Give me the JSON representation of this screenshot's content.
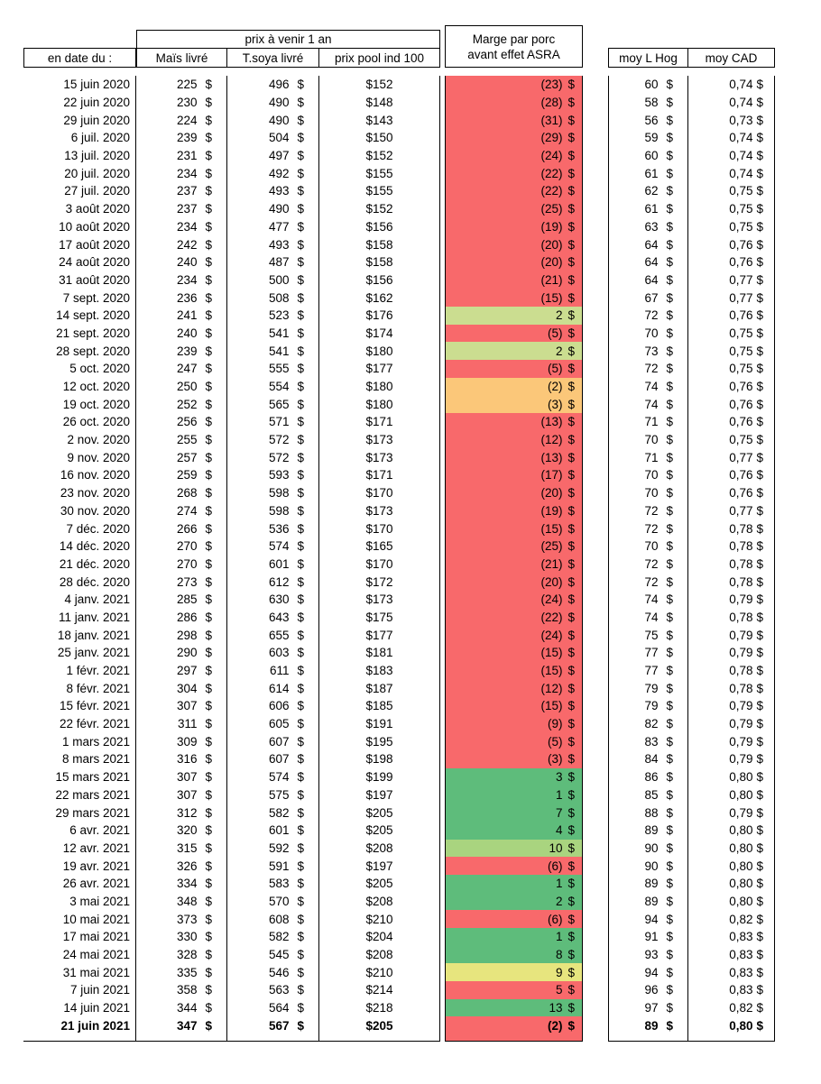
{
  "currency": "$",
  "header": {
    "date_col": "en date du :",
    "group": "prix à venir 1 an",
    "mais": "Maïs livré",
    "soya": "T.soya livré",
    "pool": "prix pool ind 100",
    "marge_line1": "Marge par porc",
    "marge_line2": "avant effet ASRA",
    "hog": "moy L Hog",
    "cad": "moy CAD"
  },
  "colors": {
    "red": "#F8696B",
    "orange": "#FBC779",
    "yellow": "#E7E57E",
    "light_green": "#CBDD90",
    "mid_green": "#A9D47F",
    "green": "#5EBC7B"
  },
  "rows": [
    {
      "date": "15 juin 2020",
      "mais": "225",
      "soya": "496",
      "pool": "$152",
      "marge": "(23)",
      "color": "red",
      "hog": "60",
      "cad": "0,74",
      "bold": false
    },
    {
      "date": "22 juin 2020",
      "mais": "230",
      "soya": "490",
      "pool": "$148",
      "marge": "(28)",
      "color": "red",
      "hog": "58",
      "cad": "0,74",
      "bold": false
    },
    {
      "date": "29 juin 2020",
      "mais": "224",
      "soya": "490",
      "pool": "$143",
      "marge": "(31)",
      "color": "red",
      "hog": "56",
      "cad": "0,73",
      "bold": false
    },
    {
      "date": "6 juil. 2020",
      "mais": "239",
      "soya": "504",
      "pool": "$150",
      "marge": "(29)",
      "color": "red",
      "hog": "59",
      "cad": "0,74",
      "bold": false
    },
    {
      "date": "13 juil. 2020",
      "mais": "231",
      "soya": "497",
      "pool": "$152",
      "marge": "(24)",
      "color": "red",
      "hog": "60",
      "cad": "0,74",
      "bold": false
    },
    {
      "date": "20 juil. 2020",
      "mais": "234",
      "soya": "492",
      "pool": "$155",
      "marge": "(22)",
      "color": "red",
      "hog": "61",
      "cad": "0,74",
      "bold": false
    },
    {
      "date": "27 juil. 2020",
      "mais": "237",
      "soya": "493",
      "pool": "$155",
      "marge": "(22)",
      "color": "red",
      "hog": "62",
      "cad": "0,75",
      "bold": false
    },
    {
      "date": "3 août 2020",
      "mais": "237",
      "soya": "490",
      "pool": "$152",
      "marge": "(25)",
      "color": "red",
      "hog": "61",
      "cad": "0,75",
      "bold": false
    },
    {
      "date": "10 août 2020",
      "mais": "234",
      "soya": "477",
      "pool": "$156",
      "marge": "(19)",
      "color": "red",
      "hog": "63",
      "cad": "0,75",
      "bold": false
    },
    {
      "date": "17 août 2020",
      "mais": "242",
      "soya": "493",
      "pool": "$158",
      "marge": "(20)",
      "color": "red",
      "hog": "64",
      "cad": "0,76",
      "bold": false
    },
    {
      "date": "24 août 2020",
      "mais": "240",
      "soya": "487",
      "pool": "$158",
      "marge": "(20)",
      "color": "red",
      "hog": "64",
      "cad": "0,76",
      "bold": false
    },
    {
      "date": "31 août 2020",
      "mais": "234",
      "soya": "500",
      "pool": "$156",
      "marge": "(21)",
      "color": "red",
      "hog": "64",
      "cad": "0,77",
      "bold": false
    },
    {
      "date": "7 sept. 2020",
      "mais": "236",
      "soya": "508",
      "pool": "$162",
      "marge": "(15)",
      "color": "red",
      "hog": "67",
      "cad": "0,77",
      "bold": false
    },
    {
      "date": "14 sept. 2020",
      "mais": "241",
      "soya": "523",
      "pool": "$176",
      "marge": "2",
      "color": "light_green",
      "hog": "72",
      "cad": "0,76",
      "bold": false
    },
    {
      "date": "21 sept. 2020",
      "mais": "240",
      "soya": "541",
      "pool": "$174",
      "marge": "(5)",
      "color": "red",
      "hog": "70",
      "cad": "0,75",
      "bold": false
    },
    {
      "date": "28 sept. 2020",
      "mais": "239",
      "soya": "541",
      "pool": "$180",
      "marge": "2",
      "color": "light_green",
      "hog": "73",
      "cad": "0,75",
      "bold": false
    },
    {
      "date": "5 oct. 2020",
      "mais": "247",
      "soya": "555",
      "pool": "$177",
      "marge": "(5)",
      "color": "red",
      "hog": "72",
      "cad": "0,75",
      "bold": false
    },
    {
      "date": "12 oct. 2020",
      "mais": "250",
      "soya": "554",
      "pool": "$180",
      "marge": "(2)",
      "color": "orange",
      "hog": "74",
      "cad": "0,76",
      "bold": false
    },
    {
      "date": "19 oct. 2020",
      "mais": "252",
      "soya": "565",
      "pool": "$180",
      "marge": "(3)",
      "color": "orange",
      "hog": "74",
      "cad": "0,76",
      "bold": false
    },
    {
      "date": "26 oct. 2020",
      "mais": "256",
      "soya": "571",
      "pool": "$171",
      "marge": "(13)",
      "color": "red",
      "hog": "71",
      "cad": "0,76",
      "bold": false
    },
    {
      "date": "2 nov. 2020",
      "mais": "255",
      "soya": "572",
      "pool": "$173",
      "marge": "(12)",
      "color": "red",
      "hog": "70",
      "cad": "0,75",
      "bold": false
    },
    {
      "date": "9 nov. 2020",
      "mais": "257",
      "soya": "572",
      "pool": "$173",
      "marge": "(13)",
      "color": "red",
      "hog": "71",
      "cad": "0,77",
      "bold": false
    },
    {
      "date": "16 nov. 2020",
      "mais": "259",
      "soya": "593",
      "pool": "$171",
      "marge": "(17)",
      "color": "red",
      "hog": "70",
      "cad": "0,76",
      "bold": false
    },
    {
      "date": "23 nov. 2020",
      "mais": "268",
      "soya": "598",
      "pool": "$170",
      "marge": "(20)",
      "color": "red",
      "hog": "70",
      "cad": "0,76",
      "bold": false
    },
    {
      "date": "30 nov. 2020",
      "mais": "274",
      "soya": "598",
      "pool": "$173",
      "marge": "(19)",
      "color": "red",
      "hog": "72",
      "cad": "0,77",
      "bold": false
    },
    {
      "date": "7 déc. 2020",
      "mais": "266",
      "soya": "536",
      "pool": "$170",
      "marge": "(15)",
      "color": "red",
      "hog": "72",
      "cad": "0,78",
      "bold": false
    },
    {
      "date": "14 déc. 2020",
      "mais": "270",
      "soya": "574",
      "pool": "$165",
      "marge": "(25)",
      "color": "red",
      "hog": "70",
      "cad": "0,78",
      "bold": false
    },
    {
      "date": "21 déc. 2020",
      "mais": "270",
      "soya": "601",
      "pool": "$170",
      "marge": "(21)",
      "color": "red",
      "hog": "72",
      "cad": "0,78",
      "bold": false
    },
    {
      "date": "28 déc. 2020",
      "mais": "273",
      "soya": "612",
      "pool": "$172",
      "marge": "(20)",
      "color": "red",
      "hog": "72",
      "cad": "0,78",
      "bold": false
    },
    {
      "date": "4 janv. 2021",
      "mais": "285",
      "soya": "630",
      "pool": "$173",
      "marge": "(24)",
      "color": "red",
      "hog": "74",
      "cad": "0,79",
      "bold": false
    },
    {
      "date": "11 janv. 2021",
      "mais": "286",
      "soya": "643",
      "pool": "$175",
      "marge": "(22)",
      "color": "red",
      "hog": "74",
      "cad": "0,78",
      "bold": false
    },
    {
      "date": "18 janv. 2021",
      "mais": "298",
      "soya": "655",
      "pool": "$177",
      "marge": "(24)",
      "color": "red",
      "hog": "75",
      "cad": "0,79",
      "bold": false
    },
    {
      "date": "25 janv. 2021",
      "mais": "290",
      "soya": "603",
      "pool": "$181",
      "marge": "(15)",
      "color": "red",
      "hog": "77",
      "cad": "0,79",
      "bold": false
    },
    {
      "date": "1 févr. 2021",
      "mais": "297",
      "soya": "611",
      "pool": "$183",
      "marge": "(15)",
      "color": "red",
      "hog": "77",
      "cad": "0,78",
      "bold": false
    },
    {
      "date": "8 févr. 2021",
      "mais": "304",
      "soya": "614",
      "pool": "$187",
      "marge": "(12)",
      "color": "red",
      "hog": "79",
      "cad": "0,78",
      "bold": false
    },
    {
      "date": "15 févr. 2021",
      "mais": "307",
      "soya": "606",
      "pool": "$185",
      "marge": "(15)",
      "color": "red",
      "hog": "79",
      "cad": "0,79",
      "bold": false
    },
    {
      "date": "22 févr. 2021",
      "mais": "311",
      "soya": "605",
      "pool": "$191",
      "marge": "(9)",
      "color": "red",
      "hog": "82",
      "cad": "0,79",
      "bold": false
    },
    {
      "date": "1 mars 2021",
      "mais": "309",
      "soya": "607",
      "pool": "$195",
      "marge": "(5)",
      "color": "red",
      "hog": "83",
      "cad": "0,79",
      "bold": false
    },
    {
      "date": "8 mars 2021",
      "mais": "316",
      "soya": "607",
      "pool": "$198",
      "marge": "(3)",
      "color": "red",
      "hog": "84",
      "cad": "0,79",
      "bold": false
    },
    {
      "date": "15 mars 2021",
      "mais": "307",
      "soya": "574",
      "pool": "$199",
      "marge": "3",
      "color": "green",
      "hog": "86",
      "cad": "0,80",
      "bold": false
    },
    {
      "date": "22 mars 2021",
      "mais": "307",
      "soya": "575",
      "pool": "$197",
      "marge": "1",
      "color": "green",
      "hog": "85",
      "cad": "0,80",
      "bold": false
    },
    {
      "date": "29 mars 2021",
      "mais": "312",
      "soya": "582",
      "pool": "$205",
      "marge": "7",
      "color": "green",
      "hog": "88",
      "cad": "0,79",
      "bold": false
    },
    {
      "date": "6 avr. 2021",
      "mais": "320",
      "soya": "601",
      "pool": "$205",
      "marge": "4",
      "color": "green",
      "hog": "89",
      "cad": "0,80",
      "bold": false
    },
    {
      "date": "12 avr. 2021",
      "mais": "315",
      "soya": "592",
      "pool": "$208",
      "marge": "10",
      "color": "mid_green",
      "hog": "90",
      "cad": "0,80",
      "bold": false
    },
    {
      "date": "19 avr. 2021",
      "mais": "326",
      "soya": "591",
      "pool": "$197",
      "marge": "(6)",
      "color": "red",
      "hog": "90",
      "cad": "0,80",
      "bold": false
    },
    {
      "date": "26 avr. 2021",
      "mais": "334",
      "soya": "583",
      "pool": "$205",
      "marge": "1",
      "color": "green",
      "hog": "89",
      "cad": "0,80",
      "bold": false
    },
    {
      "date": "3 mai 2021",
      "mais": "348",
      "soya": "570",
      "pool": "$208",
      "marge": "2",
      "color": "green",
      "hog": "89",
      "cad": "0,80",
      "bold": false
    },
    {
      "date": "10 mai 2021",
      "mais": "373",
      "soya": "608",
      "pool": "$210",
      "marge": "(6)",
      "color": "red",
      "hog": "94",
      "cad": "0,82",
      "bold": false
    },
    {
      "date": "17 mai 2021",
      "mais": "330",
      "soya": "582",
      "pool": "$204",
      "marge": "1",
      "color": "green",
      "hog": "91",
      "cad": "0,83",
      "bold": false
    },
    {
      "date": "24 mai 2021",
      "mais": "328",
      "soya": "545",
      "pool": "$208",
      "marge": "8",
      "color": "green",
      "hog": "93",
      "cad": "0,83",
      "bold": false
    },
    {
      "date": "31 mai 2021",
      "mais": "335",
      "soya": "546",
      "pool": "$210",
      "marge": "9",
      "color": "yellow",
      "hog": "94",
      "cad": "0,83",
      "bold": false
    },
    {
      "date": "7 juin 2021",
      "mais": "358",
      "soya": "563",
      "pool": "$214",
      "marge": "5",
      "color": "red",
      "hog": "96",
      "cad": "0,83",
      "bold": false
    },
    {
      "date": "14 juin 2021",
      "mais": "344",
      "soya": "564",
      "pool": "$218",
      "marge": "13",
      "color": "green",
      "hog": "97",
      "cad": "0,82",
      "bold": false
    },
    {
      "date": "21 juin 2021",
      "mais": "347",
      "soya": "567",
      "pool": "$205",
      "marge": "(2)",
      "color": "red",
      "hog": "89",
      "cad": "0,80",
      "bold": true
    }
  ]
}
